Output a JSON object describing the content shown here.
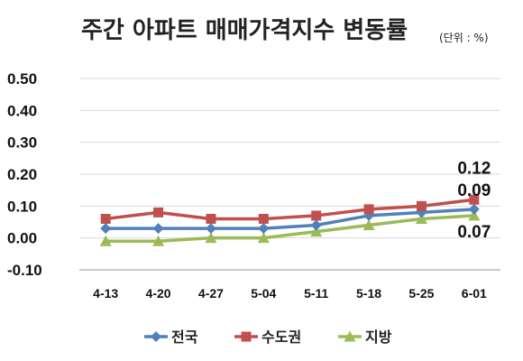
{
  "chart_data": {
    "type": "line",
    "title": "주간 아파트 매매가격지수 변동률",
    "unit": "(단위 : %)",
    "categories": [
      "4-13",
      "4-20",
      "4-27",
      "5-04",
      "5-11",
      "5-18",
      "5-25",
      "6-01"
    ],
    "series": [
      {
        "name": "전국",
        "color": "#4f81bd",
        "marker": "diamond",
        "values": [
          0.03,
          0.03,
          0.03,
          0.03,
          0.04,
          0.07,
          0.08,
          0.09
        ]
      },
      {
        "name": "수도권",
        "color": "#c0504d",
        "marker": "square",
        "values": [
          0.06,
          0.08,
          0.06,
          0.06,
          0.07,
          0.09,
          0.1,
          0.12
        ]
      },
      {
        "name": "지방",
        "color": "#9bbb59",
        "marker": "triangle",
        "values": [
          -0.01,
          -0.01,
          0.0,
          0.0,
          0.02,
          0.04,
          0.06,
          0.07
        ]
      }
    ],
    "yticks": [
      "0.50",
      "0.40",
      "0.30",
      "0.20",
      "0.10",
      "0.00",
      "-0.10"
    ],
    "ylim": [
      -0.1,
      0.5
    ],
    "grid": true,
    "legend_position": "bottom",
    "annotations": [
      {
        "text": "0.12",
        "category": "6-01",
        "value": 0.12
      },
      {
        "text": "0.09",
        "category": "6-01",
        "value": 0.09
      },
      {
        "text": "0.07",
        "category": "6-01",
        "value": 0.07
      }
    ]
  }
}
